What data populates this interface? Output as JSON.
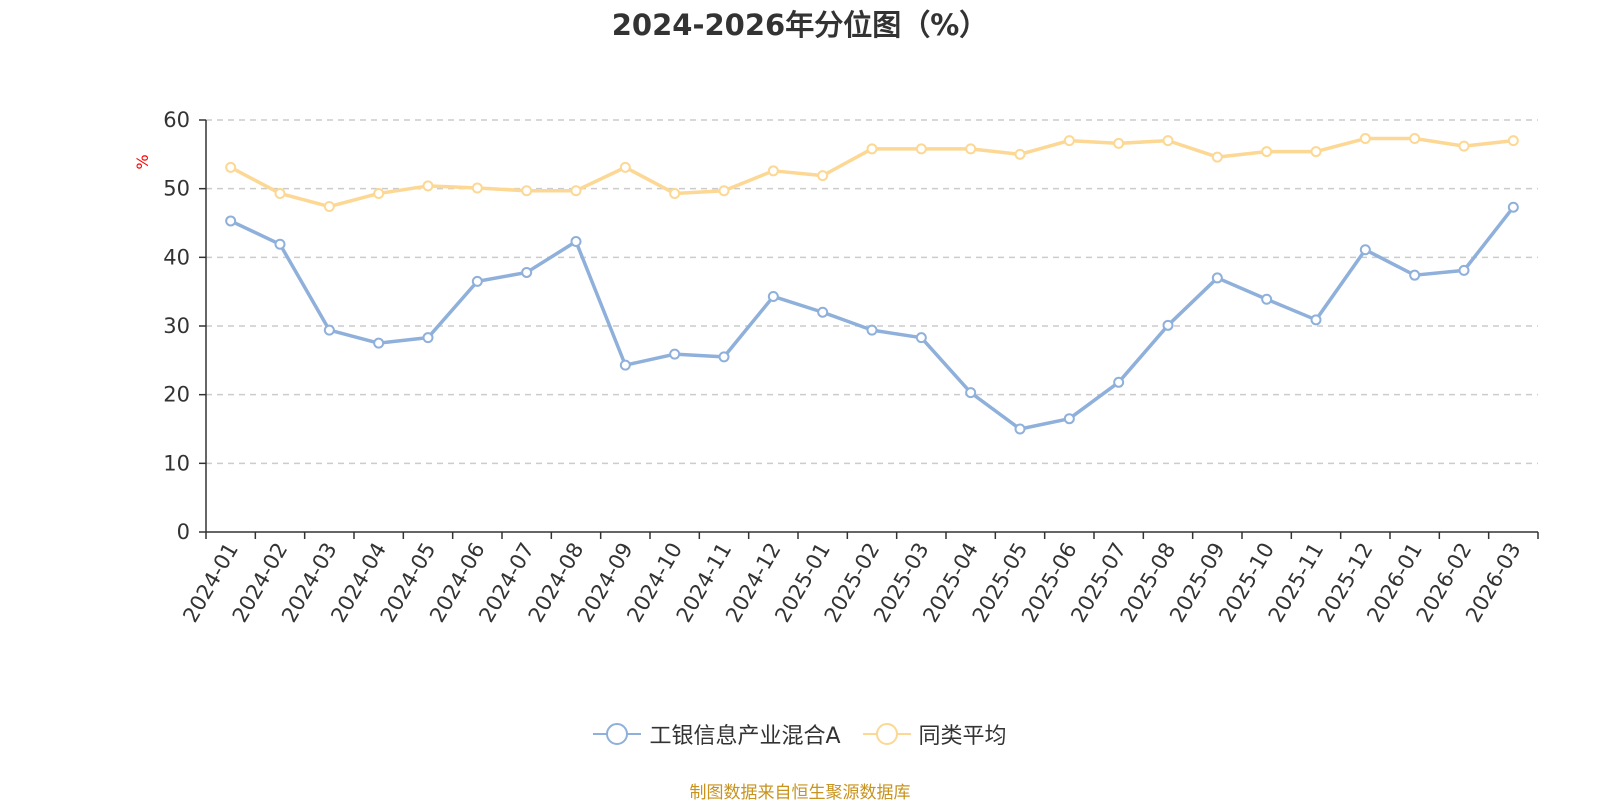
{
  "chart_data": {
    "type": "line",
    "title": "2024-2026年分位图（%）",
    "ylabel": "%",
    "ylim": [
      0,
      60
    ],
    "yticks": [
      0,
      10,
      20,
      30,
      40,
      50,
      60
    ],
    "grid": true,
    "legend_position": "bottom",
    "x": [
      "2024-01",
      "2024-02",
      "2024-03",
      "2024-04",
      "2024-05",
      "2024-06",
      "2024-07",
      "2024-08",
      "2024-09",
      "2024-10",
      "2024-11",
      "2024-12",
      "2025-01",
      "2025-02",
      "2025-03",
      "2025-04",
      "2025-05",
      "2025-06",
      "2025-07",
      "2025-08",
      "2025-09",
      "2025-10",
      "2025-11",
      "2025-12",
      "2026-01",
      "2026-02",
      "2026-03"
    ],
    "series": [
      {
        "name": "工银信息产业混合A",
        "color": "#8eb0db",
        "values": [
          45.3,
          41.9,
          29.4,
          27.5,
          28.3,
          36.5,
          37.8,
          42.3,
          24.3,
          25.9,
          25.5,
          34.3,
          32.0,
          29.4,
          28.3,
          20.3,
          15.0,
          16.5,
          21.8,
          30.1,
          37.0,
          33.9,
          30.9,
          41.1,
          37.4,
          38.1,
          47.3
        ]
      },
      {
        "name": "同类平均",
        "color": "#fcd894",
        "values": [
          53.1,
          49.3,
          47.4,
          49.3,
          50.4,
          50.1,
          49.7,
          49.7,
          53.1,
          49.3,
          49.7,
          52.6,
          51.9,
          55.8,
          55.8,
          55.8,
          55.0,
          57.0,
          56.6,
          57.0,
          54.6,
          55.4,
          55.4,
          57.3,
          57.3,
          56.2,
          57.0
        ]
      }
    ]
  },
  "colors": {
    "source_text": "#c8931e",
    "unit_label": "#ff0000",
    "gridline": "#cccccc",
    "axis": "#333333"
  },
  "source_text": "制图数据来自恒生聚源数据库"
}
